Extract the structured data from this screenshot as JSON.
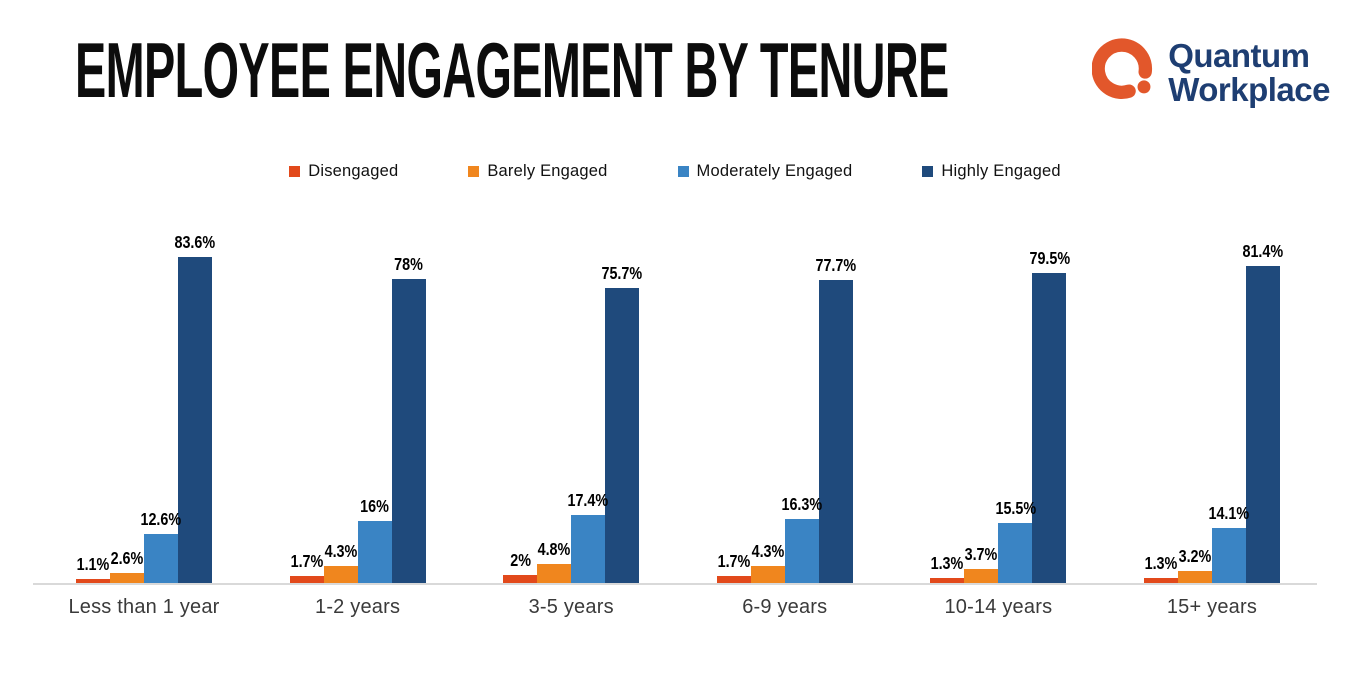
{
  "title": "EMPLOYEE ENGAGEMENT BY TENURE",
  "logo": {
    "line1": "Quantum",
    "line2": "Workplace",
    "mark_color": "#E2572B",
    "text_color": "#1E3E72"
  },
  "colors": {
    "disengaged": "#E2491B",
    "barely_engaged": "#F0861E",
    "moderately_engaged": "#3A84C4",
    "highly_engaged": "#1F4A7C",
    "baseline": "#D9D9D9",
    "title_text": "#0C0C0C",
    "category_text": "#3A3A3A"
  },
  "chart_data": {
    "type": "bar",
    "title": "EMPLOYEE ENGAGEMENT BY TENURE",
    "xlabel": "",
    "ylabel": "",
    "ylim": [
      0,
      100
    ],
    "grid": false,
    "legend_position": "top",
    "data_labels": true,
    "categories": [
      "Less than 1 year",
      "1-2 years",
      "3-5 years",
      "6-9 years",
      "10-14 years",
      "15+ years"
    ],
    "series": [
      {
        "name": "Disengaged",
        "color": "#E2491B",
        "values": [
          1.1,
          1.7,
          2,
          1.7,
          1.3,
          1.3
        ],
        "labels": [
          "1.1%",
          "1.7%",
          "2%",
          "1.7%",
          "1.3%",
          "1.3%"
        ]
      },
      {
        "name": "Barely Engaged",
        "color": "#F0861E",
        "values": [
          2.6,
          4.3,
          4.8,
          4.3,
          3.7,
          3.2
        ],
        "labels": [
          "2.6%",
          "4.3%",
          "4.8%",
          "4.3%",
          "3.7%",
          "3.2%"
        ]
      },
      {
        "name": "Moderately Engaged",
        "color": "#3A84C4",
        "values": [
          12.6,
          16,
          17.4,
          16.3,
          15.5,
          14.1
        ],
        "labels": [
          "12.6%",
          "16%",
          "17.4%",
          "16.3%",
          "15.5%",
          "14.1%"
        ]
      },
      {
        "name": "Highly Engaged",
        "color": "#1F4A7C",
        "values": [
          83.6,
          78,
          75.7,
          77.7,
          79.5,
          81.4
        ],
        "labels": [
          "83.6%",
          "78%",
          "75.7%",
          "77.7%",
          "79.5%",
          "81.4%"
        ]
      }
    ]
  }
}
